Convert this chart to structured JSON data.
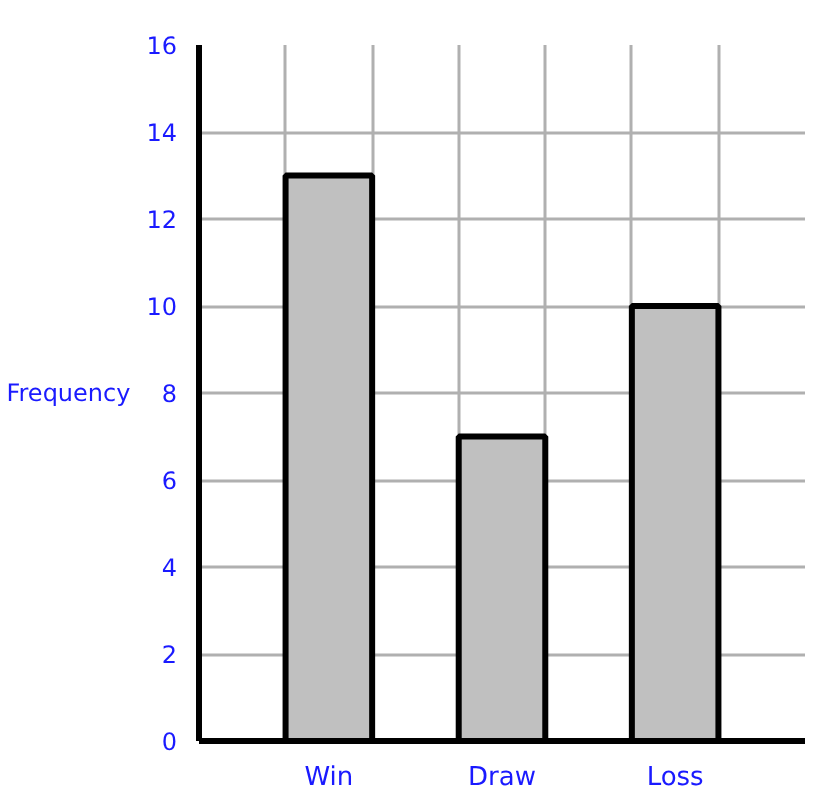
{
  "chart_data": {
    "type": "bar",
    "ylabel": "Frequency",
    "categories": [
      "Win",
      "Draw",
      "Loss"
    ],
    "values": [
      13,
      7,
      10
    ],
    "color": "#c0c0c0",
    "ylim": [
      0,
      16
    ],
    "yticks": [
      0,
      2,
      4,
      6,
      8,
      10,
      12,
      14,
      16
    ],
    "grid": true
  }
}
